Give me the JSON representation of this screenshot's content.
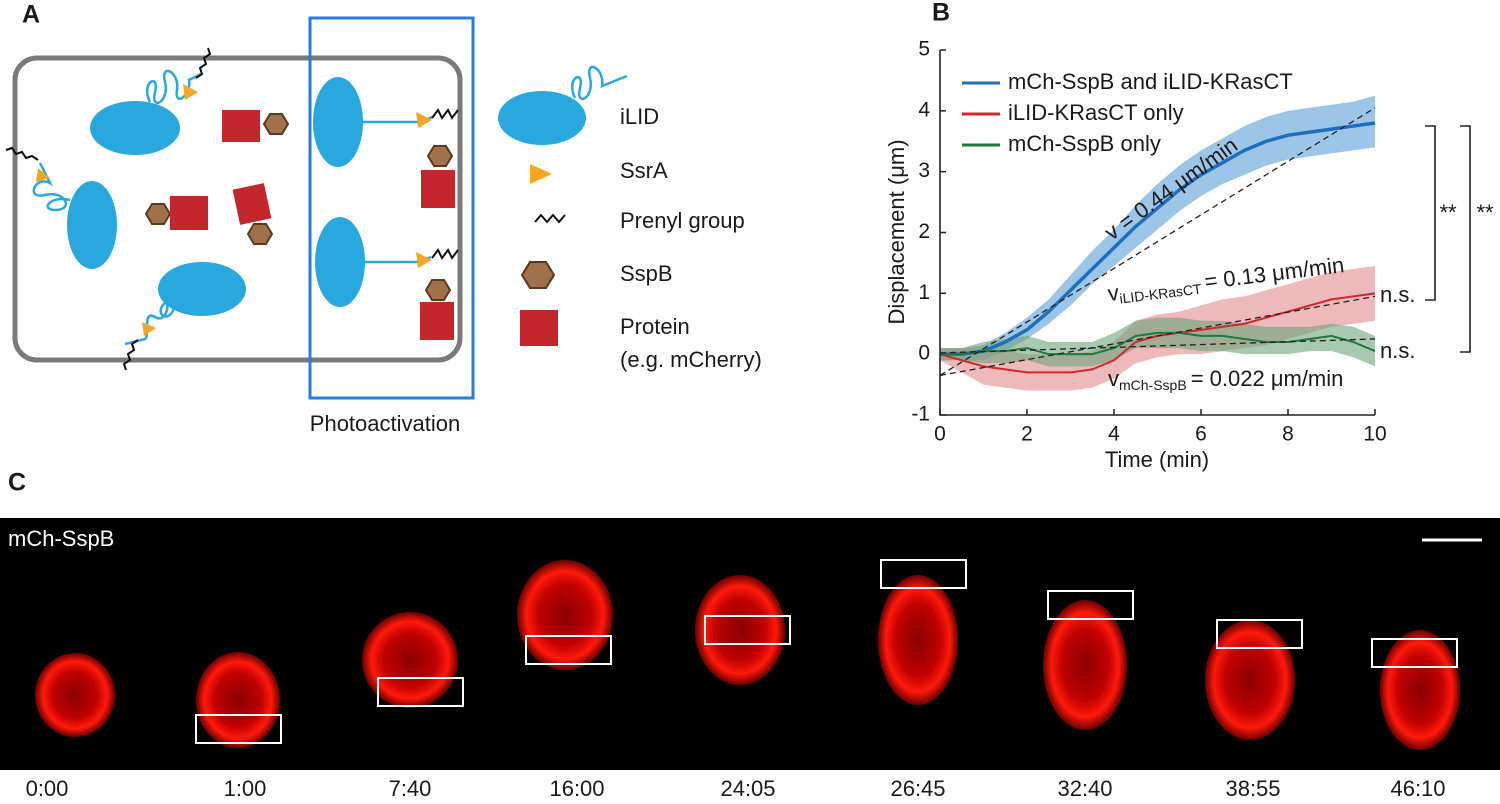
{
  "panel_a": {
    "label": "A",
    "legend": [
      [
        "iLID"
      ],
      [
        "SsrA"
      ],
      [
        "Prenyl group"
      ],
      [
        "SspB"
      ],
      [
        "Protein",
        "(e.g. mCherry)"
      ]
    ],
    "caption": "Photoactivation"
  },
  "chart_data": {
    "type": "line",
    "label": "B",
    "x_label": "Time (min)",
    "y_label": "Displacement (μm)",
    "x": [
      0,
      0.5,
      1,
      1.5,
      2,
      2.5,
      3,
      3.5,
      4,
      4.5,
      5,
      5.5,
      6,
      6.5,
      7,
      7.5,
      8,
      8.5,
      9,
      9.5,
      10
    ],
    "xlim": [
      0,
      10
    ],
    "xticks": [
      0,
      2,
      4,
      6,
      8,
      10
    ],
    "ylim": [
      -1,
      5
    ],
    "yticks": [
      -1,
      0,
      1,
      2,
      3,
      4,
      5
    ],
    "series": [
      {
        "name": "mCh-SspB and iLID-KRasCT",
        "color": "#1f6fbf",
        "band_color": "#5b9fd9",
        "values": [
          0,
          0,
          0.05,
          0.2,
          0.4,
          0.7,
          1.05,
          1.4,
          1.75,
          2.1,
          2.4,
          2.7,
          2.95,
          3.15,
          3.35,
          3.5,
          3.6,
          3.65,
          3.7,
          3.75,
          3.8
        ],
        "lower": [
          -0.1,
          -0.1,
          -0.1,
          0.05,
          0.25,
          0.5,
          0.8,
          1.15,
          1.45,
          1.75,
          2.05,
          2.35,
          2.6,
          2.8,
          2.95,
          3.1,
          3.2,
          3.25,
          3.3,
          3.35,
          3.4
        ],
        "upper": [
          0.1,
          0.1,
          0.15,
          0.35,
          0.6,
          0.9,
          1.3,
          1.7,
          2.05,
          2.45,
          2.8,
          3.1,
          3.35,
          3.55,
          3.75,
          3.9,
          4.0,
          4.05,
          4.1,
          4.15,
          4.25
        ]
      },
      {
        "name": "iLID-KRasCT only",
        "color": "#d0282e",
        "band_color": "#e38a8c",
        "values": [
          0,
          -0.1,
          -0.2,
          -0.25,
          -0.3,
          -0.3,
          -0.3,
          -0.25,
          -0.1,
          0.2,
          0.3,
          0.35,
          0.4,
          0.45,
          0.5,
          0.6,
          0.7,
          0.8,
          0.9,
          0.95,
          1.0
        ],
        "lower": [
          -0.1,
          -0.3,
          -0.5,
          -0.55,
          -0.6,
          -0.6,
          -0.6,
          -0.55,
          -0.4,
          -0.15,
          -0.05,
          0.0,
          0.0,
          0.05,
          0.1,
          0.15,
          0.25,
          0.35,
          0.45,
          0.5,
          0.55
        ],
        "upper": [
          0.1,
          0.1,
          0.1,
          0.05,
          0.0,
          0.0,
          0.0,
          0.05,
          0.2,
          0.55,
          0.65,
          0.7,
          0.8,
          0.9,
          0.95,
          1.05,
          1.15,
          1.25,
          1.35,
          1.4,
          1.45
        ]
      },
      {
        "name": "mCh-SspB only",
        "color": "#1e7a3c",
        "band_color": "#6aa57c",
        "values": [
          0,
          0,
          0.05,
          0.05,
          0.1,
          0,
          0,
          0,
          0.1,
          0.3,
          0.35,
          0.35,
          0.3,
          0.3,
          0.25,
          0.2,
          0.2,
          0.25,
          0.3,
          0.2,
          0.05
        ],
        "lower": [
          -0.1,
          -0.1,
          -0.15,
          -0.15,
          -0.1,
          -0.2,
          -0.2,
          -0.2,
          -0.1,
          0.1,
          0.1,
          0.1,
          0.05,
          0.05,
          0.0,
          0.0,
          0.0,
          0.05,
          0.05,
          -0.05,
          -0.2
        ],
        "upper": [
          0.1,
          0.1,
          0.2,
          0.25,
          0.3,
          0.2,
          0.2,
          0.2,
          0.35,
          0.55,
          0.6,
          0.6,
          0.55,
          0.55,
          0.5,
          0.45,
          0.45,
          0.45,
          0.5,
          0.45,
          0.3
        ]
      }
    ],
    "fits": [
      {
        "x": [
          0,
          10
        ],
        "y": [
          -0.35,
          4.05
        ]
      },
      {
        "x": [
          0,
          10
        ],
        "y": [
          -0.35,
          0.95
        ]
      },
      {
        "x": [
          0,
          10
        ],
        "y": [
          0.02,
          0.25
        ]
      }
    ],
    "annotations": {
      "blue": "v = 0.44 μm/min",
      "red_v": "v",
      "red_sub": "iLID-KRasCT",
      "red_rest": "= 0.13 μm/min",
      "green_v": "v",
      "green_sub": "mCh-SspB",
      "green_rest": "= 0.022 μm/min",
      "ns_red": "n.s.",
      "ns_green": "n.s.",
      "sig_1": "**",
      "sig_2": "**"
    }
  },
  "panel_c": {
    "label": "C",
    "channel": "mCh-SspB",
    "times": [
      "0:00",
      "1:00",
      "7:40",
      "16:00",
      "24:05",
      "26:45",
      "32:40",
      "38:55",
      "46:10"
    ]
  }
}
